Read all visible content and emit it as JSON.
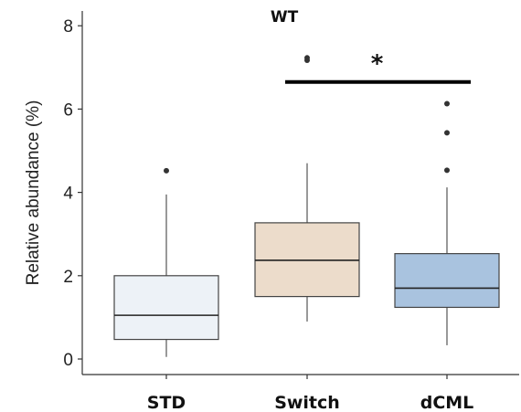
{
  "chart_data": {
    "type": "boxplot",
    "title": "WT",
    "xlabel": "",
    "ylabel": "Relative abundance (%)",
    "ylim": [
      -0.35,
      8.4
    ],
    "yticks": [
      0,
      2,
      4,
      6,
      8
    ],
    "categories": [
      "STD",
      "Switch",
      "dCML"
    ],
    "colors": [
      "#edf2f7",
      "#ecdccb",
      "#a9c3df"
    ],
    "boxes": [
      {
        "category": "STD",
        "whisker_low": 0.05,
        "q1": 0.47,
        "median": 1.05,
        "q3": 2.0,
        "whisker_high": 3.95,
        "outliers": [
          4.52
        ]
      },
      {
        "category": "Switch",
        "whisker_low": 0.9,
        "q1": 1.5,
        "median": 2.37,
        "q3": 3.27,
        "whisker_high": 4.7,
        "outliers": [
          7.17,
          7.23
        ]
      },
      {
        "category": "dCML",
        "whisker_low": 0.33,
        "q1": 1.24,
        "median": 1.7,
        "q3": 2.53,
        "whisker_high": 4.12,
        "outliers": [
          4.53,
          5.43,
          6.13
        ]
      }
    ],
    "significance": {
      "from": "Switch",
      "to": "dCML",
      "label": "*",
      "y": 6.65
    }
  }
}
